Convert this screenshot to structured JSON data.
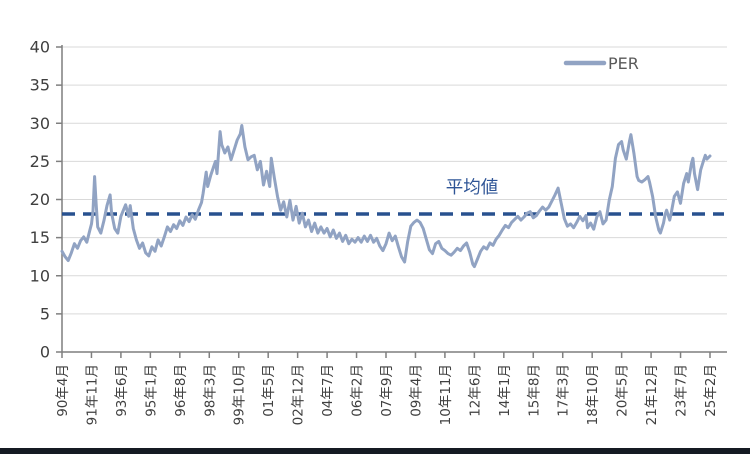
{
  "chart_data": {
    "type": "line",
    "title": "",
    "xlabel": "",
    "ylabel": "",
    "ylim": [
      0,
      40
    ],
    "y_ticks": [
      0,
      5,
      10,
      15,
      20,
      25,
      30,
      35,
      40
    ],
    "grid": "horizontal",
    "legend_position": "top-right",
    "x_tick_labels": [
      "90年4月",
      "91年11月",
      "93年6月",
      "95年1月",
      "96年8月",
      "98年3月",
      "99年10月",
      "01年5月",
      "02年12月",
      "04年7月",
      "06年2月",
      "07年9月",
      "09年4月",
      "10年11月",
      "12年6月",
      "14年1月",
      "15年8月",
      "17年3月",
      "18年10月",
      "20年5月",
      "21年12月",
      "23年7月",
      "25年2月"
    ],
    "x_tick_interval_months": 19,
    "x_start": "1990-04",
    "x_end": "2025-02",
    "average_line": {
      "label": "平均値",
      "value": 18.1,
      "style": "dashed"
    },
    "series": [
      {
        "name": "PER",
        "x_unit": "months_since_1990_04",
        "points": [
          [
            0,
            13.2
          ],
          [
            2,
            12.5
          ],
          [
            4,
            12.0
          ],
          [
            6,
            13.0
          ],
          [
            8,
            14.2
          ],
          [
            10,
            13.6
          ],
          [
            12,
            14.6
          ],
          [
            14,
            15.1
          ],
          [
            16,
            14.4
          ],
          [
            18,
            16.0
          ],
          [
            19,
            16.8
          ],
          [
            20,
            18.5
          ],
          [
            21,
            23.0
          ],
          [
            22,
            19.5
          ],
          [
            23,
            16.4
          ],
          [
            25,
            15.6
          ],
          [
            27,
            17.2
          ],
          [
            29,
            19.2
          ],
          [
            31,
            20.6
          ],
          [
            32,
            18.2
          ],
          [
            34,
            16.2
          ],
          [
            36,
            15.6
          ],
          [
            38,
            17.8
          ],
          [
            40,
            18.8
          ],
          [
            41,
            19.3
          ],
          [
            43,
            17.8
          ],
          [
            44,
            19.2
          ],
          [
            46,
            16.2
          ],
          [
            48,
            14.7
          ],
          [
            50,
            13.6
          ],
          [
            52,
            14.3
          ],
          [
            54,
            13.0
          ],
          [
            56,
            12.6
          ],
          [
            58,
            13.8
          ],
          [
            60,
            13.2
          ],
          [
            62,
            14.7
          ],
          [
            64,
            13.9
          ],
          [
            66,
            15.1
          ],
          [
            68,
            16.4
          ],
          [
            70,
            15.8
          ],
          [
            72,
            16.7
          ],
          [
            74,
            16.2
          ],
          [
            76,
            17.2
          ],
          [
            78,
            16.6
          ],
          [
            80,
            17.7
          ],
          [
            82,
            17.1
          ],
          [
            84,
            18.0
          ],
          [
            86,
            17.4
          ],
          [
            88,
            18.6
          ],
          [
            90,
            19.6
          ],
          [
            91,
            20.8
          ],
          [
            93,
            23.6
          ],
          [
            94,
            21.7
          ],
          [
            96,
            23.2
          ],
          [
            98,
            24.4
          ],
          [
            99,
            25.0
          ],
          [
            100,
            23.4
          ],
          [
            102,
            28.9
          ],
          [
            103,
            27.2
          ],
          [
            105,
            26.1
          ],
          [
            107,
            26.9
          ],
          [
            109,
            25.2
          ],
          [
            111,
            26.5
          ],
          [
            113,
            27.8
          ],
          [
            115,
            28.6
          ],
          [
            116,
            29.7
          ],
          [
            118,
            26.9
          ],
          [
            120,
            25.2
          ],
          [
            122,
            25.6
          ],
          [
            124,
            25.8
          ],
          [
            126,
            23.9
          ],
          [
            128,
            25.0
          ],
          [
            130,
            21.9
          ],
          [
            132,
            23.7
          ],
          [
            134,
            21.7
          ],
          [
            135,
            25.4
          ],
          [
            137,
            22.8
          ],
          [
            139,
            20.4
          ],
          [
            141,
            18.6
          ],
          [
            143,
            19.7
          ],
          [
            145,
            17.7
          ],
          [
            147,
            19.9
          ],
          [
            149,
            17.3
          ],
          [
            151,
            19.1
          ],
          [
            153,
            16.9
          ],
          [
            155,
            18.2
          ],
          [
            157,
            16.4
          ],
          [
            159,
            17.3
          ],
          [
            161,
            15.8
          ],
          [
            163,
            16.9
          ],
          [
            165,
            15.6
          ],
          [
            167,
            16.4
          ],
          [
            169,
            15.6
          ],
          [
            171,
            16.2
          ],
          [
            173,
            15.1
          ],
          [
            175,
            16.0
          ],
          [
            177,
            14.9
          ],
          [
            179,
            15.6
          ],
          [
            181,
            14.5
          ],
          [
            183,
            15.3
          ],
          [
            185,
            14.2
          ],
          [
            187,
            14.8
          ],
          [
            189,
            14.4
          ],
          [
            191,
            15.0
          ],
          [
            193,
            14.4
          ],
          [
            195,
            15.2
          ],
          [
            197,
            14.5
          ],
          [
            199,
            15.3
          ],
          [
            201,
            14.4
          ],
          [
            203,
            14.9
          ],
          [
            205,
            13.9
          ],
          [
            207,
            13.3
          ],
          [
            209,
            14.2
          ],
          [
            211,
            15.6
          ],
          [
            213,
            14.6
          ],
          [
            215,
            15.2
          ],
          [
            217,
            13.8
          ],
          [
            219,
            12.5
          ],
          [
            221,
            11.8
          ],
          [
            223,
            14.5
          ],
          [
            225,
            16.5
          ],
          [
            227,
            17.0
          ],
          [
            229,
            17.3
          ],
          [
            231,
            17.0
          ],
          [
            233,
            16.2
          ],
          [
            235,
            14.8
          ],
          [
            237,
            13.4
          ],
          [
            239,
            12.9
          ],
          [
            241,
            14.2
          ],
          [
            243,
            14.5
          ],
          [
            245,
            13.6
          ],
          [
            247,
            13.3
          ],
          [
            249,
            12.9
          ],
          [
            251,
            12.7
          ],
          [
            253,
            13.1
          ],
          [
            255,
            13.6
          ],
          [
            257,
            13.3
          ],
          [
            259,
            13.9
          ],
          [
            261,
            14.3
          ],
          [
            263,
            13.1
          ],
          [
            265,
            11.5
          ],
          [
            266,
            11.2
          ],
          [
            268,
            12.2
          ],
          [
            270,
            13.2
          ],
          [
            272,
            13.8
          ],
          [
            274,
            13.5
          ],
          [
            276,
            14.3
          ],
          [
            278,
            14.0
          ],
          [
            280,
            14.8
          ],
          [
            282,
            15.3
          ],
          [
            284,
            16.0
          ],
          [
            286,
            16.6
          ],
          [
            288,
            16.3
          ],
          [
            290,
            17.0
          ],
          [
            292,
            17.4
          ],
          [
            294,
            17.8
          ],
          [
            296,
            17.3
          ],
          [
            298,
            17.7
          ],
          [
            300,
            18.2
          ],
          [
            302,
            18.4
          ],
          [
            304,
            17.6
          ],
          [
            306,
            17.9
          ],
          [
            308,
            18.5
          ],
          [
            310,
            19.0
          ],
          [
            312,
            18.6
          ],
          [
            314,
            19.0
          ],
          [
            316,
            19.8
          ],
          [
            318,
            20.6
          ],
          [
            320,
            21.5
          ],
          [
            322,
            19.5
          ],
          [
            324,
            17.5
          ],
          [
            326,
            16.5
          ],
          [
            328,
            16.8
          ],
          [
            330,
            16.3
          ],
          [
            332,
            17.0
          ],
          [
            334,
            17.8
          ],
          [
            336,
            17.2
          ],
          [
            338,
            17.9
          ],
          [
            339,
            16.3
          ],
          [
            341,
            16.9
          ],
          [
            343,
            16.1
          ],
          [
            345,
            17.7
          ],
          [
            347,
            18.4
          ],
          [
            349,
            16.8
          ],
          [
            351,
            17.3
          ],
          [
            353,
            19.9
          ],
          [
            355,
            21.7
          ],
          [
            357,
            25.4
          ],
          [
            359,
            27.2
          ],
          [
            361,
            27.6
          ],
          [
            362,
            26.5
          ],
          [
            364,
            25.3
          ],
          [
            366,
            27.6
          ],
          [
            367,
            28.5
          ],
          [
            369,
            26.0
          ],
          [
            371,
            23.0
          ],
          [
            372,
            22.5
          ],
          [
            374,
            22.3
          ],
          [
            376,
            22.6
          ],
          [
            378,
            23.0
          ],
          [
            379,
            22.3
          ],
          [
            381,
            20.4
          ],
          [
            383,
            17.7
          ],
          [
            385,
            16.0
          ],
          [
            386,
            15.6
          ],
          [
            388,
            16.9
          ],
          [
            389,
            18.0
          ],
          [
            390,
            18.6
          ],
          [
            392,
            17.3
          ],
          [
            393,
            18.2
          ],
          [
            395,
            20.4
          ],
          [
            397,
            21.0
          ],
          [
            399,
            19.5
          ],
          [
            401,
            22.1
          ],
          [
            403,
            23.4
          ],
          [
            404,
            22.3
          ],
          [
            406,
            24.7
          ],
          [
            407,
            25.4
          ],
          [
            408,
            23.4
          ],
          [
            410,
            21.3
          ],
          [
            412,
            23.9
          ],
          [
            414,
            25.2
          ],
          [
            415,
            25.8
          ],
          [
            416,
            25.3
          ],
          [
            418,
            25.7
          ]
        ]
      }
    ]
  },
  "legend": {
    "label": "PER"
  },
  "annotation": {
    "label": "平均値"
  },
  "colors": {
    "per_line": "#91A3C3",
    "average_line": "#28518F",
    "annotation_text": "#2E5496",
    "legend_text": "#595959",
    "axis": "#7F7F7F",
    "gridline": "#D9D9D9",
    "tick_label": "#404040",
    "bottom_strip": "#151a23",
    "background": "#FFFFFF"
  }
}
